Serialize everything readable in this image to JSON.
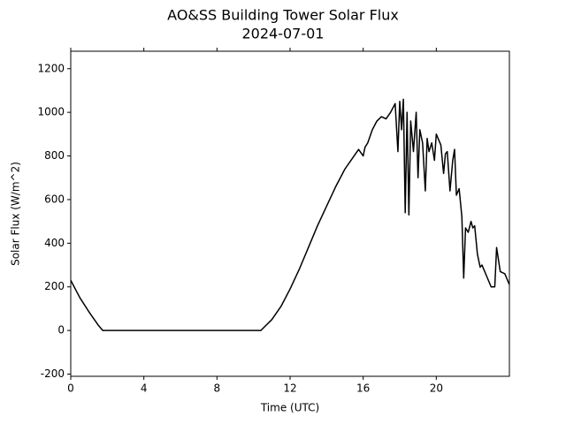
{
  "chart_data": {
    "type": "line",
    "title": "AO&SS Building Tower Solar Flux",
    "subtitle": "2024-07-01",
    "x_label": "Time (UTC)",
    "y_label": "Solar Flux (W/m^2)",
    "x": [
      0,
      0.5,
      1,
      1.5,
      1.75,
      4,
      8,
      10.4,
      11,
      11.5,
      12,
      12.5,
      13,
      13.5,
      14,
      14.5,
      15,
      15.5,
      15.75,
      16,
      16.1,
      16.25,
      16.5,
      16.75,
      17,
      17.25,
      17.5,
      17.75,
      17.9,
      18,
      18.1,
      18.2,
      18.3,
      18.4,
      18.5,
      18.6,
      18.75,
      18.9,
      19,
      19.1,
      19.25,
      19.4,
      19.5,
      19.6,
      19.75,
      19.9,
      20,
      20.1,
      20.25,
      20.4,
      20.5,
      20.6,
      20.75,
      20.9,
      21,
      21.1,
      21.25,
      21.4,
      21.5,
      21.6,
      21.75,
      21.9,
      22,
      22.1,
      22.25,
      22.4,
      22.5,
      22.75,
      23,
      23.2,
      23.3,
      23.5,
      23.75,
      24
    ],
    "series": [
      {
        "color": "#000000",
        "values": [
          230,
          150,
          85,
          25,
          0,
          0,
          0,
          0,
          50,
          110,
          190,
          280,
          380,
          480,
          570,
          660,
          740,
          800,
          830,
          800,
          840,
          860,
          920,
          960,
          980,
          970,
          1000,
          1040,
          820,
          1050,
          920,
          1060,
          540,
          1000,
          530,
          960,
          820,
          1000,
          700,
          920,
          860,
          640,
          880,
          820,
          860,
          780,
          900,
          880,
          850,
          720,
          810,
          820,
          640,
          780,
          830,
          620,
          650,
          520,
          240,
          470,
          450,
          500,
          470,
          480,
          350,
          290,
          300,
          250,
          200,
          200,
          380,
          270,
          260,
          210
        ]
      }
    ],
    "xlim": [
      0,
      24
    ],
    "xticks": [
      0,
      4,
      8,
      12,
      16,
      20
    ],
    "ylim": [
      -210,
      1280
    ],
    "yticks": [
      -200,
      0,
      200,
      400,
      600,
      800,
      1000,
      1200
    ],
    "grid": false
  }
}
